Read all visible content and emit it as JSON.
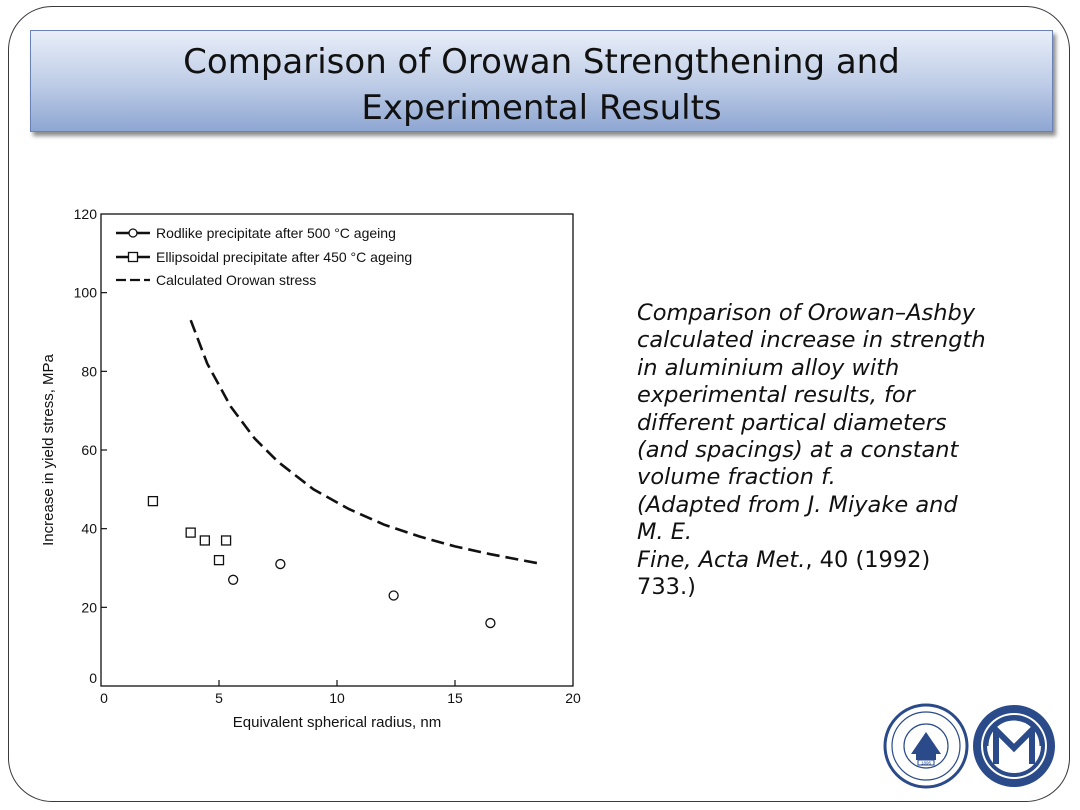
{
  "slide": {
    "title_line1": "Comparison of Orowan Strengthening and",
    "title_line2": "Experimental Results"
  },
  "caption": {
    "line1": "Comparison of Orowan–Ashby",
    "line2": "calculated increase in strength",
    "line3": "in aluminium alloy with",
    "line4": "experimental results, for",
    "line5": "different partical diameters",
    "line6": "(and spacings) at a constant",
    "line7": "volume fraction",
    "line7_symbol": "f.",
    "line8": "(Adapted from J. Miyake and",
    "line9": "M. E.",
    "line10_author": "Fine, ",
    "line10_journal": "Acta Met.",
    "line10_rest": ", 40 (1992)",
    "line11": "733.)"
  },
  "chart_data": {
    "type": "scatter",
    "xlabel": "Equivalent spherical radius, nm",
    "ylabel": "Increase in yield stress, MPa",
    "xlim": [
      0,
      20
    ],
    "ylim": [
      0,
      120
    ],
    "xticks": [
      "0",
      "5",
      "10",
      "15",
      "20"
    ],
    "yticks": [
      "0",
      "20",
      "40",
      "60",
      "80",
      "100",
      "120"
    ],
    "legend_position": "top-left",
    "series": [
      {
        "name": "Rodlike precipitate after 500 °C ageing",
        "marker": "circle",
        "points": [
          [
            5.6,
            27
          ],
          [
            7.6,
            31
          ],
          [
            12.4,
            23
          ],
          [
            16.5,
            16
          ]
        ]
      },
      {
        "name": "Ellipsoidal precipitate after 450 °C ageing",
        "marker": "square",
        "points": [
          [
            2.2,
            47
          ],
          [
            3.8,
            39
          ],
          [
            4.4,
            37
          ],
          [
            5.0,
            32
          ],
          [
            5.3,
            37
          ]
        ]
      },
      {
        "name": "Calculated Orowan stress",
        "marker": "dashed-line",
        "points": [
          [
            3.8,
            93
          ],
          [
            4.5,
            82
          ],
          [
            5.5,
            71
          ],
          [
            6.5,
            63
          ],
          [
            7.5,
            57
          ],
          [
            9,
            50
          ],
          [
            10.5,
            45
          ],
          [
            12,
            41
          ],
          [
            13.5,
            38
          ],
          [
            15,
            35.5
          ],
          [
            16.5,
            33.5
          ],
          [
            18.7,
            31
          ]
        ]
      }
    ]
  },
  "logos": {
    "left_name": "sjtu-seal",
    "right_name": "department-emblem",
    "left_ring_text": "SHANGHAI JIAO TONG UNIVERSITY",
    "left_year": "1896"
  }
}
